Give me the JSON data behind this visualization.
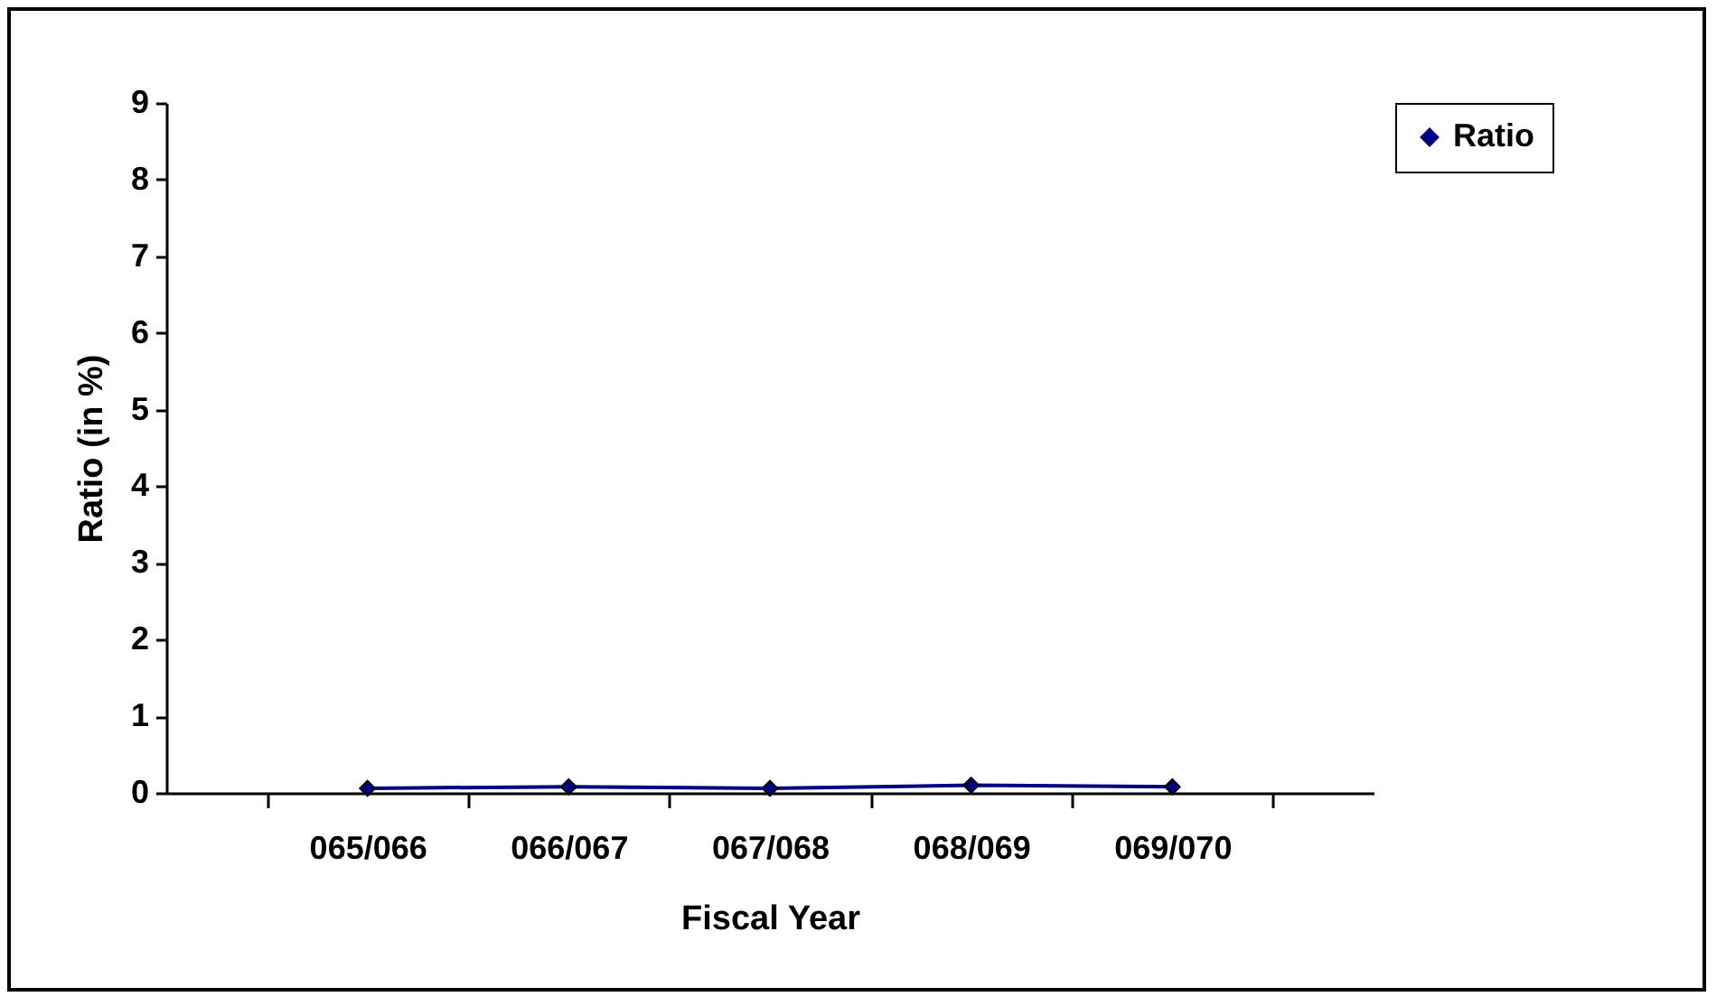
{
  "chart_data": {
    "type": "line",
    "xlabel": "Fiscal Year",
    "ylabel": "Ratio (in %)",
    "categories": [
      "065/066",
      "066/067",
      "067/068",
      "068/069",
      "069/070"
    ],
    "series": [
      {
        "name": "Ratio",
        "color": "#000080",
        "values": [
          0.06,
          0.08,
          0.06,
          0.1,
          0.08
        ]
      }
    ],
    "ylim": [
      0,
      9
    ],
    "yticks": [
      0,
      1,
      2,
      3,
      4,
      5,
      6,
      7,
      8,
      9
    ],
    "grid": false,
    "legend": "right",
    "marker": "diamond",
    "line_style": "solid"
  }
}
